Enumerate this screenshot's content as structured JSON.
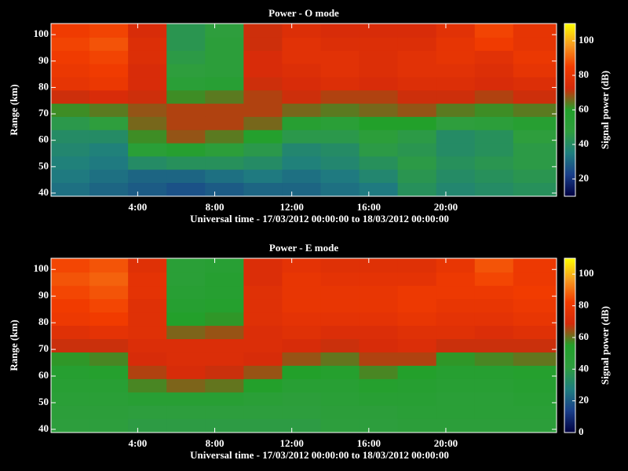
{
  "chart_data": [
    {
      "type": "heatmap",
      "title": "Power - O mode",
      "xlabel": "Universal time - 17/03/2012 00:00:00 to 18/03/2012 00:00:00",
      "ylabel": "Range (km)",
      "colorbar_label": "Signal power (dB)",
      "x_edges": [
        -0.5,
        1.5,
        3.5,
        5.5,
        7.5,
        9.5,
        11.5,
        13.5,
        15.5,
        17.5,
        19.5,
        21.5,
        23.5,
        25.75
      ],
      "y_edges": [
        38.8,
        44,
        49,
        54,
        59,
        64,
        69,
        74,
        79,
        84,
        89,
        94,
        99,
        104.2
      ],
      "z": [
        [
          32,
          30,
          28,
          26,
          28,
          30,
          30,
          32,
          34,
          42,
          38,
          40,
          42
        ],
        [
          34,
          32,
          30,
          30,
          32,
          34,
          32,
          34,
          38,
          44,
          40,
          42,
          44
        ],
        [
          36,
          34,
          40,
          42,
          42,
          40,
          36,
          38,
          42,
          46,
          42,
          44,
          46
        ],
        [
          38,
          36,
          52,
          56,
          50,
          45,
          38,
          40,
          46,
          44,
          40,
          42,
          46
        ],
        [
          40,
          40,
          62,
          68,
          64,
          58,
          45,
          45,
          50,
          46,
          40,
          42,
          48
        ],
        [
          45,
          48,
          66,
          70,
          70,
          66,
          55,
          52,
          60,
          60,
          48,
          50,
          55
        ],
        [
          62,
          64,
          68,
          70,
          70,
          70,
          66,
          64,
          66,
          68,
          64,
          62,
          64
        ],
        [
          72,
          74,
          72,
          62,
          64,
          70,
          72,
          70,
          70,
          72,
          72,
          70,
          72
        ],
        [
          80,
          82,
          74,
          52,
          54,
          72,
          74,
          76,
          74,
          76,
          76,
          74,
          76
        ],
        [
          82,
          84,
          74,
          48,
          50,
          74,
          76,
          78,
          76,
          78,
          78,
          76,
          80
        ],
        [
          84,
          86,
          76,
          46,
          50,
          74,
          78,
          78,
          76,
          78,
          80,
          78,
          82
        ],
        [
          86,
          88,
          76,
          44,
          50,
          72,
          78,
          76,
          76,
          76,
          80,
          84,
          80
        ],
        [
          84,
          86,
          74,
          44,
          48,
          72,
          76,
          74,
          74,
          74,
          78,
          86,
          80
        ]
      ],
      "xlim": [
        -0.5,
        25.75
      ],
      "ylim": [
        38.8,
        104.2
      ],
      "xticks": [
        {
          "value": 4,
          "label": "4:00"
        },
        {
          "value": 8,
          "label": "8:00"
        },
        {
          "value": 12,
          "label": "12:00"
        },
        {
          "value": 16,
          "label": "16:00"
        },
        {
          "value": 20,
          "label": "20:00"
        }
      ],
      "yticks": [
        40,
        50,
        60,
        70,
        80,
        90,
        100
      ],
      "clim": [
        10,
        110
      ],
      "cticks": [
        20,
        40,
        60,
        80,
        100
      ],
      "colormap": [
        "#000040",
        "#1a3f8a",
        "#1f7f7f",
        "#2e9e3e",
        "#22a02a",
        "#d42a0a",
        "#f23c00",
        "#f79a20",
        "#ffff00"
      ]
    },
    {
      "type": "heatmap",
      "title": "Power - E mode",
      "xlabel": "Universal time - 17/03/2012 00:00:00 to 18/03/2012 00:00:00",
      "ylabel": "Range (km)",
      "colorbar_label": "Signal power (dB)",
      "x_edges": [
        -0.5,
        1.5,
        3.5,
        5.5,
        7.5,
        9.5,
        11.5,
        13.5,
        15.5,
        17.5,
        19.5,
        21.5,
        23.5,
        25.75
      ],
      "y_edges": [
        38.8,
        44,
        49,
        54,
        59,
        64,
        69,
        74,
        79,
        84,
        89,
        94,
        99,
        104.2
      ],
      "z": [
        [
          42,
          42,
          40,
          40,
          40,
          40,
          40,
          42,
          42,
          44,
          44,
          44,
          44
        ],
        [
          44,
          44,
          42,
          42,
          42,
          42,
          42,
          44,
          44,
          46,
          46,
          46,
          46
        ],
        [
          46,
          46,
          48,
          48,
          48,
          46,
          44,
          46,
          48,
          48,
          46,
          46,
          48
        ],
        [
          48,
          48,
          58,
          62,
          60,
          54,
          48,
          48,
          52,
          50,
          48,
          48,
          50
        ],
        [
          50,
          52,
          66,
          70,
          68,
          64,
          55,
          52,
          58,
          54,
          50,
          50,
          52
        ],
        [
          56,
          58,
          70,
          72,
          72,
          70,
          64,
          60,
          66,
          66,
          56,
          58,
          60
        ],
        [
          68,
          68,
          72,
          72,
          72,
          72,
          70,
          68,
          70,
          72,
          68,
          68,
          68
        ],
        [
          74,
          76,
          74,
          62,
          64,
          72,
          74,
          72,
          72,
          74,
          74,
          72,
          74
        ],
        [
          80,
          82,
          74,
          54,
          56,
          74,
          76,
          76,
          76,
          78,
          76,
          76,
          78
        ],
        [
          82,
          84,
          74,
          50,
          52,
          74,
          78,
          78,
          78,
          80,
          78,
          78,
          80
        ],
        [
          84,
          86,
          76,
          48,
          50,
          74,
          78,
          78,
          78,
          80,
          80,
          80,
          82
        ],
        [
          86,
          88,
          76,
          46,
          50,
          72,
          78,
          76,
          76,
          76,
          80,
          84,
          80
        ],
        [
          84,
          86,
          74,
          46,
          48,
          72,
          76,
          74,
          74,
          74,
          78,
          86,
          80
        ]
      ],
      "xlim": [
        -0.5,
        25.75
      ],
      "ylim": [
        38.8,
        104.2
      ],
      "xticks": [
        {
          "value": 4,
          "label": "4:00"
        },
        {
          "value": 8,
          "label": "8:00"
        },
        {
          "value": 12,
          "label": "12:00"
        },
        {
          "value": 16,
          "label": "16:00"
        },
        {
          "value": 20,
          "label": "20:00"
        }
      ],
      "yticks": [
        40,
        50,
        60,
        70,
        80,
        90,
        100
      ],
      "clim": [
        0,
        110
      ],
      "cticks": [
        0,
        20,
        40,
        60,
        80,
        100
      ],
      "colormap": [
        "#000040",
        "#1a3f8a",
        "#1f7f7f",
        "#2e9e3e",
        "#22a02a",
        "#d42a0a",
        "#f23c00",
        "#f79a20",
        "#ffff00"
      ]
    }
  ]
}
